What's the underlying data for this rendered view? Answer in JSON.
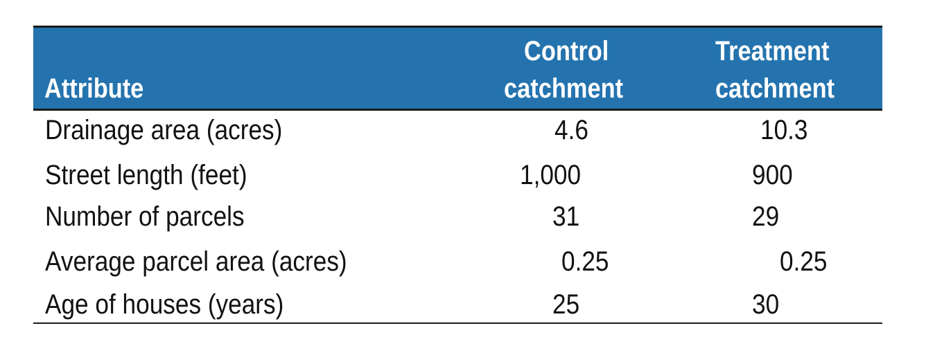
{
  "table": {
    "headers": [
      "Attribute",
      "Control catchment",
      "Treatment catchment"
    ],
    "header_lines": {
      "attribute": "Attribute",
      "control": [
        "Control",
        "catchment"
      ],
      "treatment": [
        "Treatment",
        "catchment"
      ]
    },
    "rows": [
      {
        "attribute": "Drainage area (acres)",
        "control": "4.6",
        "treatment": "10.3"
      },
      {
        "attribute": "Street length (feet)",
        "control": "1,000",
        "treatment": "900"
      },
      {
        "attribute": "Number of parcels",
        "control": "31",
        "treatment": "29"
      },
      {
        "attribute": "Average parcel area (acres)",
        "control": "0.25",
        "treatment": "0.25"
      },
      {
        "attribute": "Age of houses (years)",
        "control": "25",
        "treatment": "30"
      }
    ],
    "header_color": "#2473ae"
  }
}
